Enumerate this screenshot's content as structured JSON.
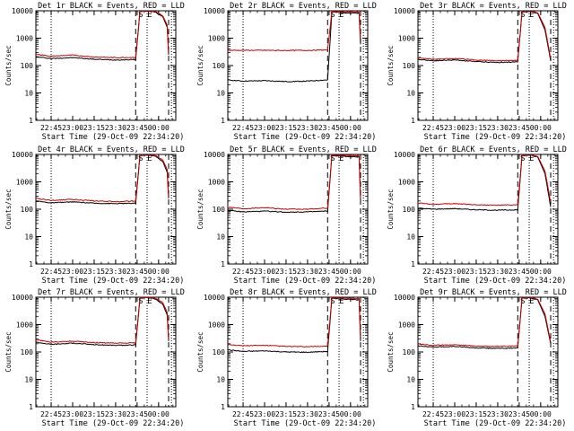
{
  "chart_data": [
    {
      "type": "line",
      "title": "Det 1r BLACK = Events, RED = LLD",
      "xlabel": "Start Time (29-Oct-09 22:34:20)",
      "ylabel": "Counts/sec",
      "x_ticks": [
        "22:45",
        "23:00",
        "23:15",
        "23:30",
        "23:45",
        "00:00"
      ],
      "y_ticks": [
        "1",
        "10",
        "100",
        "1000",
        "10000"
      ],
      "y_scale": "log",
      "xlim": [
        "22:34:20",
        "00:12:00"
      ],
      "ylim": [
        1,
        10000
      ],
      "markers": [
        "S",
        "E"
      ],
      "series": [
        {
          "name": "Events",
          "color": "#000000",
          "x": [
            "22:34",
            "22:45",
            "23:00",
            "23:15",
            "23:30",
            "23:44",
            "23:47",
            "23:50",
            "23:55",
            "23:58",
            "00:03",
            "00:06",
            "00:07"
          ],
          "y": [
            210,
            180,
            195,
            170,
            160,
            165,
            9500,
            9800,
            9600,
            8800,
            6000,
            2500,
            250
          ]
        },
        {
          "name": "LLD",
          "color": "#cc0000",
          "x": [
            "22:34",
            "22:45",
            "23:00",
            "23:15",
            "23:30",
            "23:44",
            "23:47",
            "23:50",
            "23:55",
            "23:58",
            "00:03",
            "00:06",
            "00:07"
          ],
          "y": [
            260,
            220,
            240,
            205,
            195,
            200,
            9800,
            10000,
            9800,
            9200,
            6500,
            3000,
            300
          ]
        }
      ]
    },
    {
      "type": "line",
      "title": "Det 2r BLACK = Events, RED = LLD",
      "xlabel": "Start Time (29-Oct-09 22:34:20)",
      "ylabel": "Counts/sec",
      "x_ticks": [
        "22:45",
        "23:00",
        "23:15",
        "23:30",
        "23:45",
        "00:00"
      ],
      "y_ticks": [
        "1",
        "10",
        "100",
        "1000",
        "10000"
      ],
      "y_scale": "log",
      "xlim": [
        "22:34:20",
        "00:12:00"
      ],
      "ylim": [
        1,
        10000
      ],
      "markers": [
        "S",
        "E"
      ],
      "series": [
        {
          "name": "Events",
          "color": "#000000",
          "x": [
            "22:34",
            "22:45",
            "23:00",
            "23:15",
            "23:30",
            "23:44",
            "23:47",
            "00:06",
            "00:07"
          ],
          "y": [
            30,
            27,
            28,
            26,
            27,
            30,
            9000,
            8000,
            600
          ]
        },
        {
          "name": "LLD",
          "color": "#cc0000",
          "x": [
            "22:34",
            "22:45",
            "23:00",
            "23:15",
            "23:30",
            "23:44",
            "23:47",
            "00:06",
            "00:07"
          ],
          "y": [
            360,
            360,
            360,
            355,
            360,
            370,
            9500,
            9000,
            900
          ]
        }
      ]
    },
    {
      "type": "line",
      "title": "Det 3r BLACK = Events, RED = LLD",
      "xlabel": "Start Time (29-Oct-09 22:34:20)",
      "ylabel": "Counts/sec",
      "x_ticks": [
        "22:45",
        "23:00",
        "23:15",
        "23:30",
        "23:45",
        "00:00"
      ],
      "y_ticks": [
        "1",
        "10",
        "100",
        "1000",
        "10000"
      ],
      "y_scale": "log",
      "xlim": [
        "22:34:20",
        "00:12:00"
      ],
      "ylim": [
        1,
        10000
      ],
      "markers": [
        "S",
        "E"
      ],
      "series": [
        {
          "name": "Events",
          "color": "#000000",
          "x": [
            "22:34",
            "22:45",
            "23:00",
            "23:15",
            "23:30",
            "23:44",
            "23:47",
            "23:52",
            "23:58",
            "00:03",
            "00:07"
          ],
          "y": [
            170,
            150,
            160,
            140,
            130,
            135,
            9000,
            9500,
            8000,
            2000,
            150
          ]
        },
        {
          "name": "LLD",
          "color": "#cc0000",
          "x": [
            "22:34",
            "22:45",
            "23:00",
            "23:15",
            "23:30",
            "23:44",
            "23:47",
            "23:52",
            "23:58",
            "00:03",
            "00:07"
          ],
          "y": [
            190,
            170,
            180,
            160,
            150,
            155,
            9500,
            10000,
            8500,
            2500,
            180
          ]
        }
      ]
    },
    {
      "type": "line",
      "title": "Det 4r BLACK = Events, RED = LLD",
      "xlabel": "Start Time (29-Oct-09 22:34:20)",
      "ylabel": "Counts/sec",
      "x_ticks": [
        "22:45",
        "23:00",
        "23:15",
        "23:30",
        "23:45",
        "00:00"
      ],
      "y_ticks": [
        "1",
        "10",
        "100",
        "1000",
        "10000"
      ],
      "y_scale": "log",
      "xlim": [
        "22:34:20",
        "00:12:00"
      ],
      "ylim": [
        1,
        10000
      ],
      "markers": [
        "S",
        "E"
      ],
      "series": [
        {
          "name": "Events",
          "color": "#000000",
          "x": [
            "22:34",
            "22:45",
            "23:00",
            "23:15",
            "23:30",
            "23:44",
            "23:47",
            "23:50",
            "23:55",
            "23:58",
            "00:03",
            "00:06",
            "00:07"
          ],
          "y": [
            200,
            170,
            185,
            165,
            160,
            165,
            9000,
            9500,
            9300,
            8500,
            5500,
            2200,
            250
          ]
        },
        {
          "name": "LLD",
          "color": "#cc0000",
          "x": [
            "22:34",
            "22:45",
            "23:00",
            "23:15",
            "23:30",
            "23:44",
            "23:47",
            "23:50",
            "23:55",
            "23:58",
            "00:03",
            "00:06",
            "00:07"
          ],
          "y": [
            250,
            210,
            230,
            200,
            190,
            200,
            9500,
            10000,
            9700,
            9000,
            6200,
            2800,
            300
          ]
        }
      ]
    },
    {
      "type": "line",
      "title": "Det 5r BLACK = Events, RED = LLD",
      "xlabel": "Start Time (29-Oct-09 22:34:20)",
      "ylabel": "Counts/sec",
      "x_ticks": [
        "22:45",
        "23:00",
        "23:15",
        "23:30",
        "23:45",
        "00:00"
      ],
      "y_ticks": [
        "1",
        "10",
        "100",
        "1000",
        "10000"
      ],
      "y_scale": "log",
      "xlim": [
        "22:34:20",
        "00:12:00"
      ],
      "ylim": [
        1,
        10000
      ],
      "markers": [
        "S",
        "E"
      ],
      "series": [
        {
          "name": "Events",
          "color": "#000000",
          "x": [
            "22:34",
            "22:45",
            "23:00",
            "23:15",
            "23:30",
            "23:44",
            "23:47",
            "00:06",
            "00:07"
          ],
          "y": [
            90,
            80,
            85,
            78,
            80,
            85,
            9000,
            8000,
            200
          ]
        },
        {
          "name": "LLD",
          "color": "#cc0000",
          "x": [
            "22:34",
            "22:45",
            "23:00",
            "23:15",
            "23:30",
            "23:44",
            "23:47",
            "00:06",
            "00:07"
          ],
          "y": [
            120,
            105,
            115,
            100,
            100,
            110,
            9500,
            9000,
            250
          ]
        }
      ]
    },
    {
      "type": "line",
      "title": "Det 6r BLACK = Events, RED = LLD",
      "xlabel": "Start Time (29-Oct-09 22:34:20)",
      "ylabel": "Counts/sec",
      "x_ticks": [
        "22:45",
        "23:00",
        "23:15",
        "23:30",
        "23:45",
        "00:00"
      ],
      "y_ticks": [
        "1",
        "10",
        "100",
        "1000",
        "10000"
      ],
      "y_scale": "log",
      "xlim": [
        "22:34:20",
        "00:12:00"
      ],
      "ylim": [
        1,
        10000
      ],
      "markers": [
        "S",
        "E"
      ],
      "series": [
        {
          "name": "Events",
          "color": "#000000",
          "x": [
            "22:34",
            "22:45",
            "23:00",
            "23:15",
            "23:30",
            "23:44",
            "23:47",
            "23:52",
            "23:58",
            "00:03",
            "00:07"
          ],
          "y": [
            110,
            100,
            105,
            95,
            92,
            95,
            9000,
            9500,
            8000,
            2000,
            120
          ]
        },
        {
          "name": "LLD",
          "color": "#cc0000",
          "x": [
            "22:34",
            "22:45",
            "23:00",
            "23:15",
            "23:30",
            "23:44",
            "23:47",
            "23:52",
            "23:58",
            "00:03",
            "00:07"
          ],
          "y": [
            170,
            150,
            160,
            145,
            140,
            145,
            9500,
            10000,
            8500,
            2500,
            180
          ]
        }
      ]
    },
    {
      "type": "line",
      "title": "Det 7r BLACK = Events, RED = LLD",
      "xlabel": "Start Time (29-Oct-09 22:34:20)",
      "ylabel": "Counts/sec",
      "x_ticks": [
        "22:45",
        "23:00",
        "23:15",
        "23:30",
        "23:45",
        "00:00"
      ],
      "y_ticks": [
        "1",
        "10",
        "100",
        "1000",
        "10000"
      ],
      "y_scale": "log",
      "xlim": [
        "22:34:20",
        "00:12:00"
      ],
      "ylim": [
        1,
        10000
      ],
      "markers": [
        "S",
        "E"
      ],
      "series": [
        {
          "name": "Events",
          "color": "#000000",
          "x": [
            "22:34",
            "22:45",
            "23:00",
            "23:15",
            "23:30",
            "23:44",
            "23:47",
            "23:50",
            "23:55",
            "23:58",
            "00:03",
            "00:06",
            "00:07"
          ],
          "y": [
            230,
            190,
            210,
            185,
            175,
            180,
            9000,
            9500,
            9300,
            8500,
            5500,
            2200,
            250
          ]
        },
        {
          "name": "LLD",
          "color": "#cc0000",
          "x": [
            "22:34",
            "22:45",
            "23:00",
            "23:15",
            "23:30",
            "23:44",
            "23:47",
            "23:50",
            "23:55",
            "23:58",
            "00:03",
            "00:06",
            "00:07"
          ],
          "y": [
            280,
            230,
            250,
            220,
            210,
            215,
            9500,
            10000,
            9700,
            9000,
            6200,
            2800,
            300
          ]
        }
      ]
    },
    {
      "type": "line",
      "title": "Det 8r BLACK = Events, RED = LLD",
      "xlabel": "Start Time (29-Oct-09 22:34:20)",
      "ylabel": "Counts/sec",
      "x_ticks": [
        "22:45",
        "23:00",
        "23:15",
        "23:30",
        "23:45",
        "00:00"
      ],
      "y_ticks": [
        "1",
        "10",
        "100",
        "1000",
        "10000"
      ],
      "y_scale": "log",
      "xlim": [
        "22:34:20",
        "00:12:00"
      ],
      "ylim": [
        1,
        10000
      ],
      "markers": [
        "S",
        "E"
      ],
      "series": [
        {
          "name": "Events",
          "color": "#000000",
          "x": [
            "22:34",
            "22:45",
            "23:00",
            "23:15",
            "23:30",
            "23:44",
            "23:47",
            "00:06",
            "00:07"
          ],
          "y": [
            120,
            105,
            110,
            100,
            98,
            105,
            9000,
            8000,
            250
          ]
        },
        {
          "name": "LLD",
          "color": "#cc0000",
          "x": [
            "22:34",
            "22:45",
            "23:00",
            "23:15",
            "23:30",
            "23:44",
            "23:47",
            "00:06",
            "00:07"
          ],
          "y": [
            190,
            170,
            175,
            160,
            155,
            165,
            9500,
            9000,
            350
          ]
        }
      ]
    },
    {
      "type": "line",
      "title": "Det 9r BLACK = Events, RED = LLD",
      "xlabel": "Start Time (29-Oct-09 22:34:20)",
      "ylabel": "Counts/sec",
      "x_ticks": [
        "22:45",
        "23:00",
        "23:15",
        "23:30",
        "23:45",
        "00:00"
      ],
      "y_ticks": [
        "1",
        "10",
        "100",
        "1000",
        "10000"
      ],
      "y_scale": "log",
      "xlim": [
        "22:34:20",
        "00:12:00"
      ],
      "ylim": [
        1,
        10000
      ],
      "markers": [
        "S",
        "E"
      ],
      "series": [
        {
          "name": "Events",
          "color": "#000000",
          "x": [
            "22:34",
            "22:45",
            "23:00",
            "23:15",
            "23:30",
            "23:44",
            "23:47",
            "23:52",
            "23:58",
            "00:03",
            "00:07"
          ],
          "y": [
            170,
            150,
            160,
            140,
            135,
            140,
            9000,
            9500,
            8000,
            2000,
            200
          ]
        },
        {
          "name": "LLD",
          "color": "#cc0000",
          "x": [
            "22:34",
            "22:45",
            "23:00",
            "23:15",
            "23:30",
            "23:44",
            "23:47",
            "23:52",
            "23:58",
            "00:03",
            "00:07"
          ],
          "y": [
            200,
            175,
            185,
            165,
            160,
            165,
            9500,
            10000,
            8500,
            2500,
            230
          ]
        }
      ]
    }
  ]
}
